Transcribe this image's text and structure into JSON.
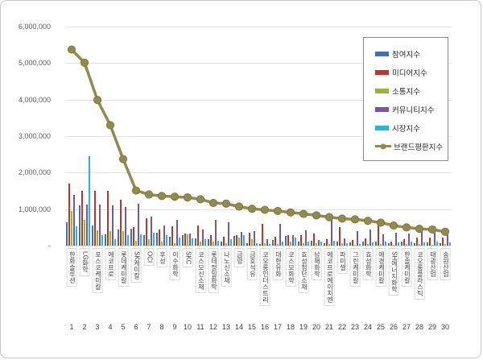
{
  "chart_data": {
    "type": "bar",
    "subtype": "grouped-bars-with-line-overlay",
    "title": "",
    "xlabel": "",
    "ylabel": "",
    "ylim": [
      0,
      6000000
    ],
    "grid": true,
    "legend_position": "top-right",
    "y_ticks_bottom_to_top": [
      "-",
      "1,000,000",
      "2,000,000",
      "3,000,000",
      "4,000,000",
      "5,000,000",
      "6,000,000"
    ],
    "categories": [
      "한화솔루션",
      "LG화학",
      "포스코케미칼",
      "에코프로",
      "롯데케미칼",
      "SK케미칼",
      "OCI",
      "후성",
      "이수화학",
      "SKC",
      "코스모신소재",
      "롯데정밀화학",
      "나노신소재",
      "금양",
      "금호석유",
      "코오롱인더스트리",
      "대한유화",
      "코스모화학",
      "효성첨단소재",
      "남해화학",
      "에코프로에이치엔",
      "파미셀",
      "그린케미칼",
      "효성화학",
      "애경케미칼",
      "SH에너지화학",
      "한솔케미칼",
      "코오롱플라스틱",
      "태광산업",
      "송원산업"
    ],
    "category_numbers": [
      "1",
      "2",
      "3",
      "4",
      "5",
      "6",
      "7",
      "8",
      "9",
      "10",
      "11",
      "12",
      "13",
      "14",
      "15",
      "16",
      "17",
      "18",
      "19",
      "20",
      "21",
      "22",
      "23",
      "24",
      "25",
      "26",
      "27",
      "28",
      "29",
      "30"
    ],
    "series": [
      {
        "name": "참여지수",
        "semantic": "participation-index",
        "type": "bar",
        "color": "#4470b3",
        "values": [
          640000,
          1100000,
          550000,
          300000,
          450000,
          460000,
          280000,
          350000,
          240000,
          280000,
          200000,
          170000,
          120000,
          260000,
          60000,
          50000,
          150000,
          260000,
          100000,
          130000,
          70000,
          100000,
          80000,
          100000,
          120000,
          60000,
          120000,
          70000,
          80000,
          70000
        ]
      },
      {
        "name": "미디어지수",
        "semantic": "media-index",
        "type": "bar",
        "color": "#c0342e",
        "values": [
          1700000,
          1500000,
          1510000,
          1500000,
          1250000,
          500000,
          760000,
          450000,
          540000,
          330000,
          550000,
          280000,
          240000,
          290000,
          350000,
          600000,
          250000,
          290000,
          290000,
          340000,
          170000,
          510000,
          150000,
          200000,
          650000,
          120000,
          180000,
          210000,
          230000,
          210000
        ]
      },
      {
        "name": "소통지수",
        "semantic": "communication-index",
        "type": "bar",
        "color": "#94b83d",
        "values": [
          940000,
          700000,
          430000,
          400000,
          400000,
          130000,
          170000,
          100000,
          60000,
          300000,
          100000,
          100000,
          60000,
          220000,
          170000,
          60000,
          50000,
          120000,
          60000,
          60000,
          40000,
          60000,
          30000,
          40000,
          50000,
          30000,
          50000,
          40000,
          30000,
          40000
        ]
      },
      {
        "name": "커뮤니티지수",
        "semantic": "community-index",
        "type": "bar",
        "color": "#7457a5",
        "values": [
          1380000,
          1130000,
          1130000,
          1100000,
          1050000,
          1140000,
          790000,
          550000,
          700000,
          330000,
          450000,
          710000,
          630000,
          370000,
          390000,
          170000,
          600000,
          290000,
          410000,
          150000,
          740000,
          190000,
          400000,
          450000,
          300000,
          350000,
          340000,
          400000,
          540000,
          370000
        ]
      },
      {
        "name": "시장지수",
        "semantic": "market-index",
        "type": "bar",
        "color": "#2fb1dc",
        "values": [
          520000,
          2450000,
          280000,
          170000,
          280000,
          320000,
          350000,
          280000,
          210000,
          200000,
          180000,
          130000,
          170000,
          280000,
          60000,
          40000,
          100000,
          210000,
          100000,
          100000,
          130000,
          60000,
          50000,
          80000,
          120000,
          80000,
          100000,
          80000,
          120000,
          80000
        ]
      },
      {
        "name": "브랜드평판지수",
        "semantic": "brand-reputation-index",
        "type": "line",
        "color": "#928a4f",
        "values": [
          5370000,
          5010000,
          3990000,
          3300000,
          2370000,
          1510000,
          1400000,
          1360000,
          1340000,
          1320000,
          1270000,
          1170000,
          1150000,
          1070000,
          1010000,
          980000,
          950000,
          910000,
          870000,
          830000,
          780000,
          740000,
          720000,
          680000,
          630000,
          550000,
          500000,
          460000,
          440000,
          380000
        ]
      }
    ]
  }
}
